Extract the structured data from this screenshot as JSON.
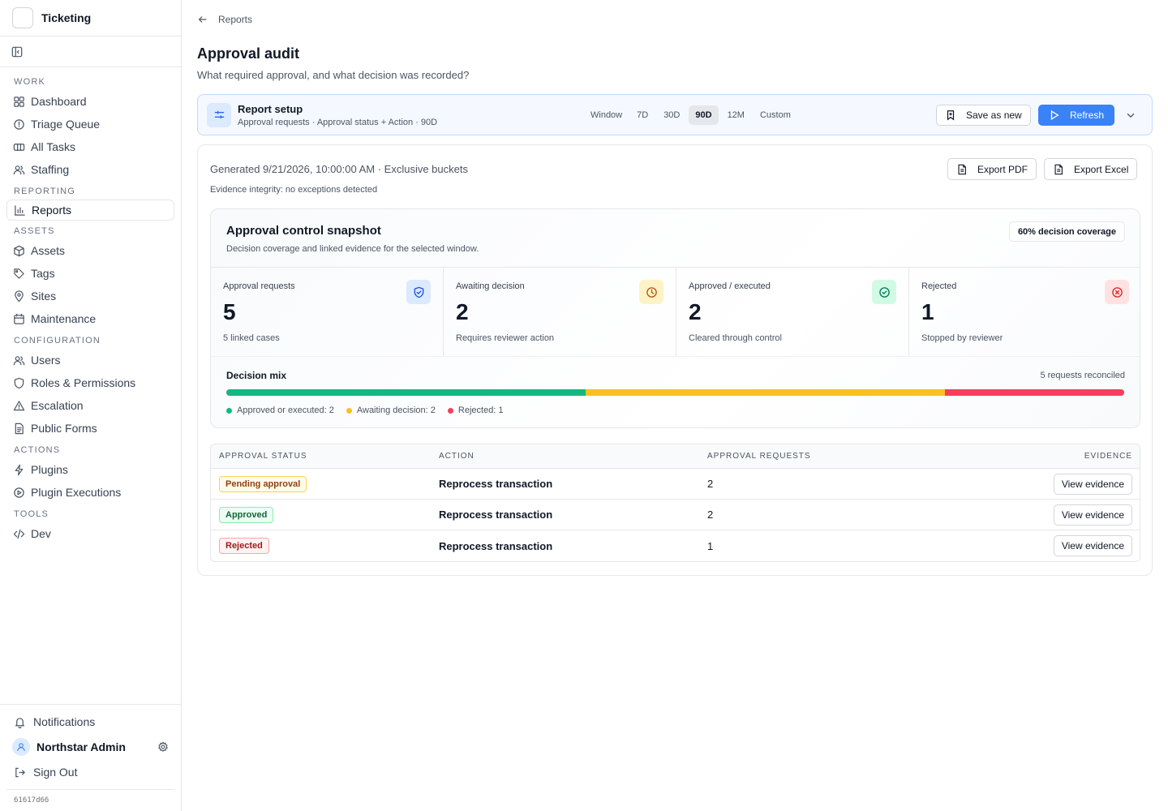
{
  "app": {
    "name": "Ticketing",
    "version": "61617d66"
  },
  "sidebar": {
    "sections": [
      {
        "label": "WORK",
        "items": [
          "Dashboard",
          "Triage Queue",
          "All Tasks",
          "Staffing"
        ]
      },
      {
        "label": "REPORTING",
        "items": [
          "Reports"
        ]
      },
      {
        "label": "ASSETS",
        "items": [
          "Assets",
          "Tags",
          "Sites",
          "Maintenance"
        ]
      },
      {
        "label": "CONFIGURATION",
        "items": [
          "Users",
          "Roles & Permissions",
          "Escalation",
          "Public Forms"
        ]
      },
      {
        "label": "ACTIONS",
        "items": [
          "Plugins",
          "Plugin Executions"
        ]
      },
      {
        "label": "TOOLS",
        "items": [
          "Dev"
        ]
      }
    ],
    "active_item": "Reports",
    "bottom": {
      "notifications": "Notifications",
      "user": "Northstar Admin",
      "sign_out": "Sign Out"
    }
  },
  "breadcrumb": {
    "back_label": "Reports"
  },
  "page": {
    "title": "Approval audit",
    "subtitle": "What required approval, and what decision was recorded?"
  },
  "setup": {
    "title": "Report setup",
    "summary": "Approval requests · Approval status + Action · 90D",
    "window_label": "Window",
    "windows": [
      "7D",
      "30D",
      "90D",
      "12M",
      "Custom"
    ],
    "selected_window": "90D",
    "save_label": "Save as new",
    "refresh_label": "Refresh"
  },
  "report": {
    "generated": "Generated 9/21/2026, 10:00:00 AM · Exclusive buckets",
    "integrity": "Evidence integrity: no exceptions detected",
    "export_pdf": "Export PDF",
    "export_excel": "Export Excel"
  },
  "snapshot": {
    "title": "Approval control snapshot",
    "subtitle": "Decision coverage and linked evidence for the selected window.",
    "coverage": "60% decision coverage",
    "kpis": [
      {
        "label": "Approval requests",
        "value": "5",
        "note": "5 linked cases",
        "icon": "shield-check-icon",
        "icon_bg": "#dbeafe",
        "icon_color": "#1d4ed8"
      },
      {
        "label": "Awaiting decision",
        "value": "2",
        "note": "Requires reviewer action",
        "icon": "clock-icon",
        "icon_bg": "#fef3c7",
        "icon_color": "#b45309"
      },
      {
        "label": "Approved / executed",
        "value": "2",
        "note": "Cleared through control",
        "icon": "check-circle-icon",
        "icon_bg": "#d1fae5",
        "icon_color": "#047857"
      },
      {
        "label": "Rejected",
        "value": "1",
        "note": "Stopped by reviewer",
        "icon": "x-circle-icon",
        "icon_bg": "#fee2e2",
        "icon_color": "#dc2626"
      }
    ],
    "mix": {
      "title": "Decision mix",
      "total": "5 requests reconciled",
      "segments": [
        {
          "label": "Approved or executed: 2",
          "value": 2,
          "color": "#10b981"
        },
        {
          "label": "Awaiting decision: 2",
          "value": 2,
          "color": "#fbbf24"
        },
        {
          "label": "Rejected: 1",
          "value": 1,
          "color": "#f43f5e"
        }
      ]
    }
  },
  "table": {
    "headers": [
      "APPROVAL STATUS",
      "ACTION",
      "APPROVAL REQUESTS",
      "EVIDENCE"
    ],
    "rows": [
      {
        "status": "Pending approval",
        "status_kind": "pending",
        "action": "Reprocess transaction",
        "requests": "2",
        "evidence": "View evidence"
      },
      {
        "status": "Approved",
        "status_kind": "approved",
        "action": "Reprocess transaction",
        "requests": "2",
        "evidence": "View evidence"
      },
      {
        "status": "Rejected",
        "status_kind": "rejected",
        "action": "Reprocess transaction",
        "requests": "1",
        "evidence": "View evidence"
      }
    ]
  }
}
